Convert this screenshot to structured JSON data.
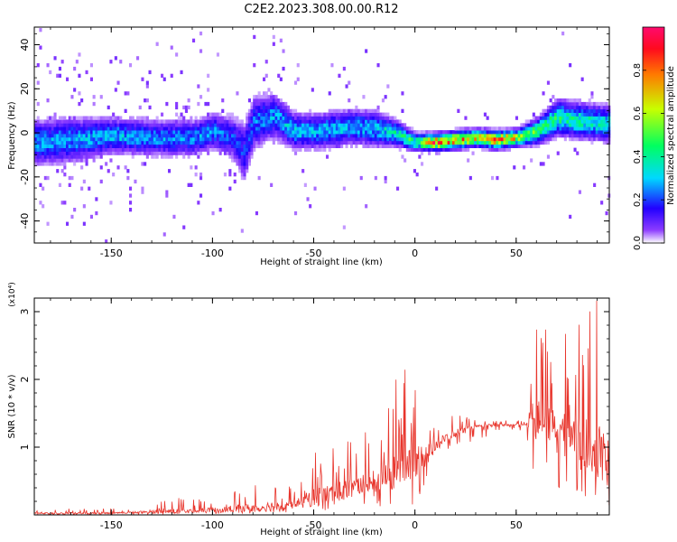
{
  "title": "C2E2.2023.308.00.00.R12",
  "chart_data": [
    {
      "type": "heatmap",
      "xlabel": "Height of straight line (km)",
      "ylabel": "Frequency (Hz)",
      "xlim": [
        -188,
        96
      ],
      "ylim": [
        -50,
        48
      ],
      "xticks": [
        -150,
        -100,
        -50,
        0,
        50
      ],
      "yticks": [
        -40,
        -20,
        0,
        20,
        40
      ],
      "colorbar": {
        "label": "Normalized spectral amplitude",
        "range": [
          0,
          1
        ],
        "ticks": [
          "0.0",
          "0.2",
          "0.4",
          "0.6",
          "0.8"
        ],
        "tick_values": [
          0,
          0.2,
          0.4,
          0.6,
          0.8
        ]
      },
      "ridge": {
        "x": [
          -185,
          -170,
          -150,
          -130,
          -110,
          -100,
          -90,
          -85,
          -80,
          -70,
          -60,
          -50,
          -40,
          -30,
          -20,
          -10,
          0,
          10,
          20,
          30,
          40,
          50,
          60,
          70,
          80,
          90,
          96
        ],
        "frequency": [
          -5,
          -4,
          -2,
          -3,
          -3,
          0,
          -3,
          -10,
          4,
          7,
          0,
          0,
          1,
          2,
          1,
          -1,
          -5,
          -5,
          -4,
          -3,
          -4,
          -3,
          0,
          6,
          5,
          4,
          3
        ],
        "peak_amplitude": [
          0.3,
          0.3,
          0.32,
          0.3,
          0.28,
          0.28,
          0.22,
          0.2,
          0.26,
          0.3,
          0.34,
          0.32,
          0.33,
          0.33,
          0.32,
          0.4,
          0.5,
          0.92,
          0.85,
          0.75,
          0.95,
          0.68,
          0.5,
          0.48,
          0.44,
          0.4,
          0.4
        ],
        "spread_hz": [
          5,
          5,
          4,
          4,
          4,
          4,
          5,
          7,
          6,
          5,
          4,
          4,
          4,
          4,
          4,
          3,
          2,
          2,
          2,
          2,
          2,
          2,
          3,
          4,
          4,
          4,
          4
        ]
      }
    },
    {
      "type": "line",
      "xlabel": "Height of straight line (km)",
      "ylabel": "SNR (10 * v/v)",
      "y_multiplier": "(x10⁴)",
      "xlim": [
        -188,
        96
      ],
      "ylim": [
        0,
        3.2
      ],
      "xticks": [
        -150,
        -100,
        -50,
        0,
        50
      ],
      "yticks": [
        1,
        2,
        3
      ],
      "color": "#e8352c",
      "envelope": {
        "x": [
          -188,
          -160,
          -140,
          -120,
          -100,
          -80,
          -70,
          -60,
          -50,
          -40,
          -30,
          -20,
          -10,
          0,
          5,
          10,
          20,
          30,
          40,
          50,
          55,
          60,
          70,
          80,
          90,
          96
        ],
        "baseline": [
          0.02,
          0.02,
          0.03,
          0.04,
          0.06,
          0.08,
          0.1,
          0.14,
          0.2,
          0.26,
          0.35,
          0.45,
          0.55,
          0.7,
          0.85,
          1.0,
          1.2,
          1.3,
          1.32,
          1.33,
          1.33,
          1.3,
          1.2,
          1.0,
          0.8,
          0.7
        ],
        "peak": [
          0.08,
          0.1,
          0.1,
          0.25,
          0.25,
          0.45,
          0.55,
          0.4,
          1.0,
          1.1,
          1.2,
          1.3,
          2.0,
          2.3,
          1.5,
          1.5,
          1.5,
          1.4,
          1.4,
          1.4,
          1.4,
          2.9,
          2.6,
          2.8,
          3.2,
          2.4
        ],
        "trough": [
          0.0,
          0.0,
          0.0,
          0.0,
          0.01,
          0.02,
          0.02,
          0.03,
          0.05,
          0.05,
          0.08,
          0.1,
          0.1,
          0.15,
          0.4,
          0.8,
          1.0,
          1.1,
          1.2,
          1.25,
          1.2,
          0.3,
          0.2,
          0.2,
          0.1,
          0.1
        ]
      }
    }
  ]
}
